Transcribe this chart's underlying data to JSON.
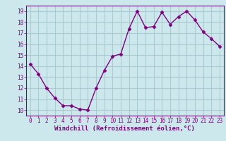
{
  "x": [
    0,
    1,
    2,
    3,
    4,
    5,
    6,
    7,
    8,
    9,
    10,
    11,
    12,
    13,
    14,
    15,
    16,
    17,
    18,
    19,
    20,
    21,
    22,
    23
  ],
  "y": [
    14.2,
    13.3,
    12.0,
    11.1,
    10.4,
    10.4,
    10.1,
    10.0,
    12.0,
    13.6,
    14.9,
    15.1,
    17.4,
    19.0,
    17.5,
    17.6,
    18.9,
    17.8,
    18.5,
    19.0,
    18.2,
    17.1,
    16.5,
    15.8
  ],
  "line_color": "#800080",
  "marker": "D",
  "marker_size": 2.5,
  "xlabel": "Windchill (Refroidissement éolien,°C)",
  "xlim": [
    -0.5,
    23.5
  ],
  "ylim": [
    9.5,
    19.5
  ],
  "yticks": [
    10,
    11,
    12,
    13,
    14,
    15,
    16,
    17,
    18,
    19
  ],
  "xticks": [
    0,
    1,
    2,
    3,
    4,
    5,
    6,
    7,
    8,
    9,
    10,
    11,
    12,
    13,
    14,
    15,
    16,
    17,
    18,
    19,
    20,
    21,
    22,
    23
  ],
  "grid_color": "#aaccd0",
  "background_color": "#cce8ec",
  "line_width": 1.0,
  "tick_fontsize": 5.5,
  "xlabel_fontsize": 6.5
}
